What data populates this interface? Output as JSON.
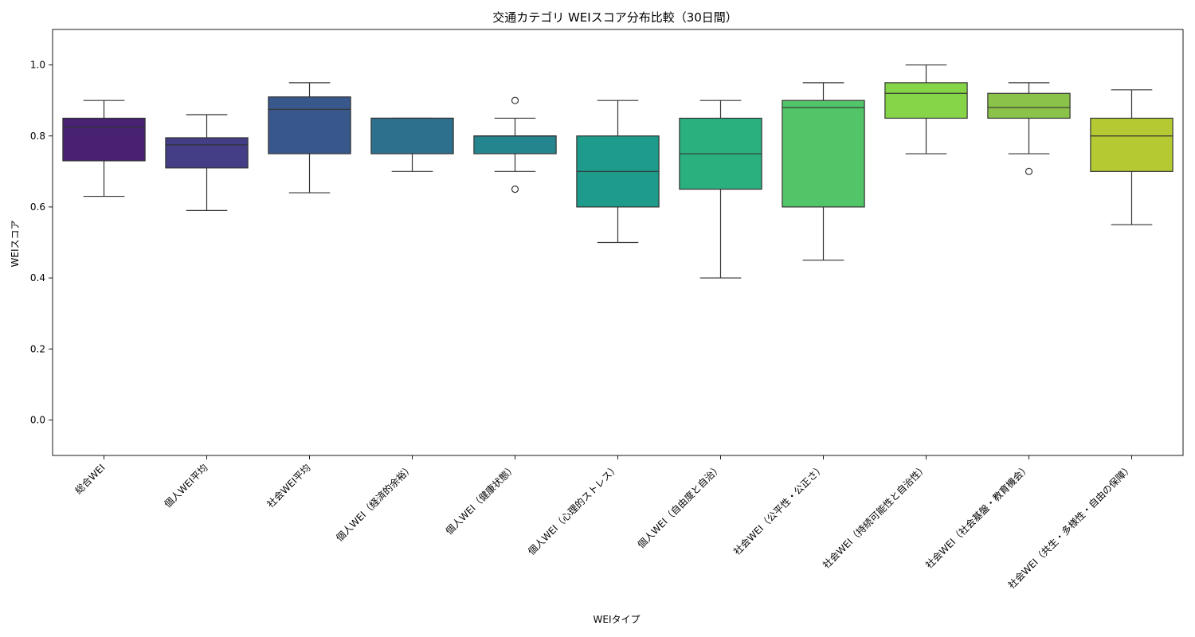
{
  "chart_data": {
    "type": "boxplot",
    "title": "交通カテゴリ WEIスコア分布比較（30日間）",
    "xlabel": "WEIタイプ",
    "ylabel": "WEIスコア",
    "ylim": [
      -0.1,
      1.1
    ],
    "yticks": [
      "0.0",
      "0.2",
      "0.4",
      "0.6",
      "0.8",
      "1.0"
    ],
    "categories": [
      "総合WEI",
      "個人WEI平均",
      "社会WEI平均",
      "個人WEI（経済的余裕）",
      "個人WEI（健康状態）",
      "個人WEI（心理的ストレス）",
      "個人WEI（自由度と自治）",
      "社会WEI（公平性・公正さ）",
      "社会WEI（持続可能性と自治性）",
      "社会WEI（社会基盤・教育機会）",
      "社会WEI（共生・多様性・自由の保障）"
    ],
    "boxes": [
      {
        "whisker_low": 0.63,
        "q1": 0.73,
        "median": 0.825,
        "q3": 0.85,
        "whisker_high": 0.9,
        "outliers": [],
        "color": "#482173"
      },
      {
        "whisker_low": 0.59,
        "q1": 0.71,
        "median": 0.775,
        "q3": 0.795,
        "whisker_high": 0.86,
        "outliers": [],
        "color": "#433e85"
      },
      {
        "whisker_low": 0.64,
        "q1": 0.75,
        "median": 0.875,
        "q3": 0.91,
        "whisker_high": 0.95,
        "outliers": [],
        "color": "#38588c"
      },
      {
        "whisker_low": 0.7,
        "q1": 0.75,
        "median": 0.85,
        "q3": 0.85,
        "whisker_high": 0.85,
        "outliers": [],
        "color": "#2d708e"
      },
      {
        "whisker_low": 0.7,
        "q1": 0.75,
        "median": 0.8,
        "q3": 0.8,
        "whisker_high": 0.85,
        "outliers": [
          0.9,
          0.65
        ],
        "color": "#25858e"
      },
      {
        "whisker_low": 0.5,
        "q1": 0.6,
        "median": 0.7,
        "q3": 0.8,
        "whisker_high": 0.9,
        "outliers": [],
        "color": "#1e9b8a"
      },
      {
        "whisker_low": 0.4,
        "q1": 0.65,
        "median": 0.75,
        "q3": 0.85,
        "whisker_high": 0.9,
        "outliers": [],
        "color": "#2ab07f"
      },
      {
        "whisker_low": 0.45,
        "q1": 0.6,
        "median": 0.88,
        "q3": 0.9,
        "whisker_high": 0.95,
        "outliers": [],
        "color": "#52c569"
      },
      {
        "whisker_low": 0.75,
        "q1": 0.85,
        "median": 0.92,
        "q3": 0.95,
        "whisker_high": 1.0,
        "outliers": [],
        "color": "#86d549"
      },
      {
        "whisker_low": 0.75,
        "q1": 0.85,
        "median": 0.88,
        "q3": 0.92,
        "whisker_high": 0.95,
        "outliers": [
          0.7
        ],
        "color": "#8bc34a"
      },
      {
        "whisker_low": 0.55,
        "q1": 0.7,
        "median": 0.8,
        "q3": 0.85,
        "whisker_high": 0.93,
        "outliers": [],
        "color": "#b5c932"
      }
    ]
  }
}
